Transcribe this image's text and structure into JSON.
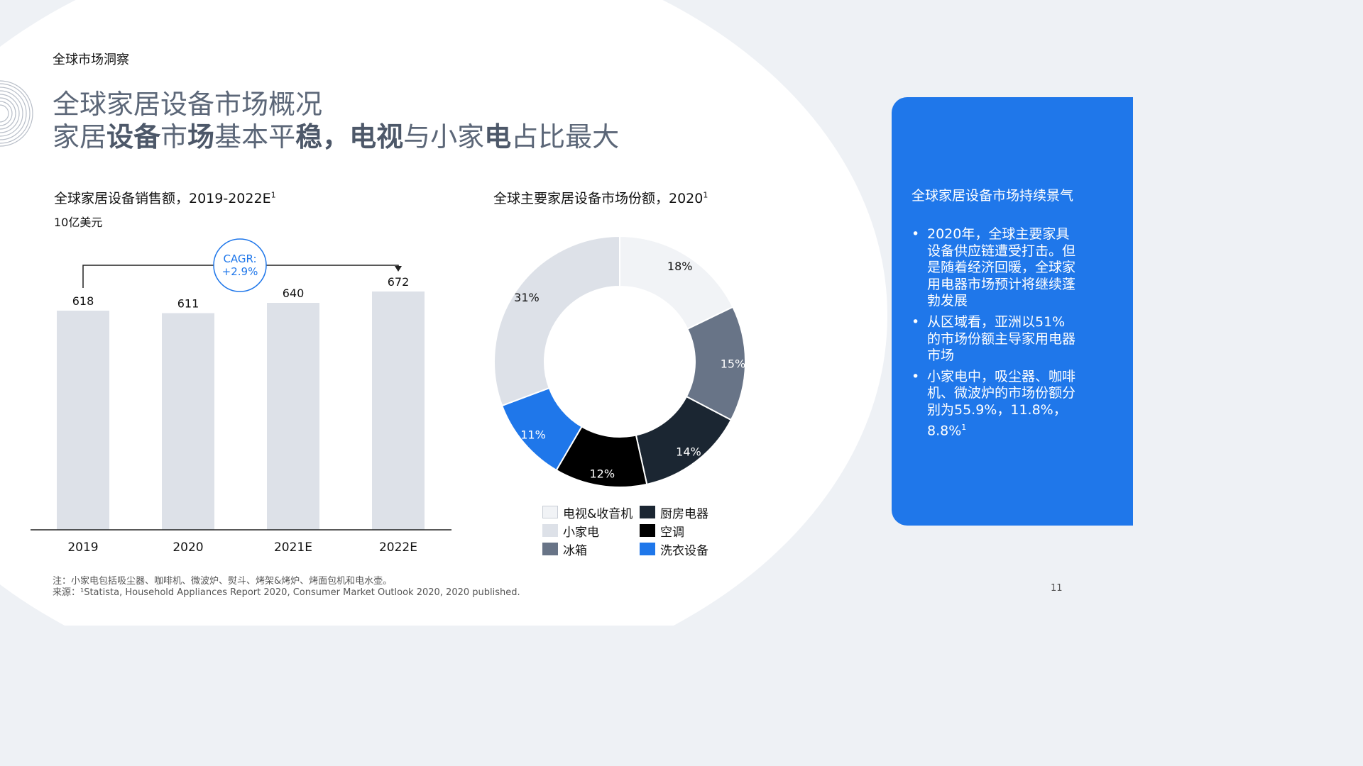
{
  "section_label": "全球市场洞察",
  "title_line1": "全球家居设备市场概况",
  "title_line2": [
    {
      "t": "家居",
      "b": false
    },
    {
      "t": "设备",
      "b": true
    },
    {
      "t": "市",
      "b": false
    },
    {
      "t": "场",
      "b": true
    },
    {
      "t": "基本平",
      "b": false
    },
    {
      "t": "稳，",
      "b": true
    },
    {
      "t": "电视",
      "b": true
    },
    {
      "t": "与小家",
      "b": false
    },
    {
      "t": "电",
      "b": true
    },
    {
      "t": "占比最大",
      "b": false
    }
  ],
  "colors": {
    "bar": "#dde1e8",
    "accent": "#1f77ea",
    "text": "#111111",
    "tv": "#f1f3f6",
    "small": "#dde1e8",
    "fridge": "#687487",
    "kitchen": "#1b2632",
    "ac": "#000000",
    "laundry": "#1f77ea"
  },
  "chart_data": [
    {
      "type": "bar",
      "title": "全球家居设备销售额，2019-2022E",
      "title_sup": "1",
      "unit": "10亿美元",
      "categories": [
        "2019",
        "2020",
        "2021E",
        "2022E"
      ],
      "values": [
        618,
        611,
        640,
        672
      ],
      "ylim": [
        0,
        700
      ],
      "grid": false,
      "annotation": {
        "label_line1": "CAGR:",
        "label_line2": "+2.9%"
      }
    },
    {
      "type": "pie",
      "title": "全球主要家居设备市场份额，2020",
      "title_sup": "1",
      "donut": true,
      "slices": [
        {
          "label": "电视&收音机",
          "value": 18,
          "color_key": "tv",
          "text_color": "#111111"
        },
        {
          "label": "冰箱",
          "value": 15,
          "color_key": "fridge",
          "text_color": "#ffffff"
        },
        {
          "label": "厨房电器",
          "value": 14,
          "color_key": "kitchen",
          "text_color": "#ffffff"
        },
        {
          "label": "空调",
          "value": 12,
          "color_key": "ac",
          "text_color": "#ffffff"
        },
        {
          "label": "洗衣设备",
          "value": 11,
          "color_key": "laundry",
          "text_color": "#ffffff"
        },
        {
          "label": "小家电",
          "value": 31,
          "color_key": "small",
          "text_color": "#111111"
        }
      ],
      "legend": [
        {
          "label": "电视&收音机",
          "color_key": "tv"
        },
        {
          "label": "厨房电器",
          "color_key": "kitchen"
        },
        {
          "label": "小家电",
          "color_key": "small"
        },
        {
          "label": "空调",
          "color_key": "ac"
        },
        {
          "label": "冰箱",
          "color_key": "fridge"
        },
        {
          "label": "洗衣设备",
          "color_key": "laundry"
        }
      ]
    }
  ],
  "panel": {
    "title": "全球家居设备市场持续景气",
    "bullets": [
      "2020年，全球主要家具设备供应链遭受打击。但是随着经济回暖，全球家用电器市场预计将继续蓬勃发展",
      "从区域看，亚洲以51%的市场份额主导家用电器市场",
      "小家电中，吸尘器、咖啡机、微波炉的市场份额分别为55.9%，11.8%，8.8%"
    ],
    "last_sup": "1"
  },
  "footnote1": "注：小家电包括吸尘器、咖啡机、微波炉、熨斗、烤架&烤炉、烤面包机和电水壶。",
  "footnote2": "来源：¹Statista, Household Appliances Report 2020, Consumer Market Outlook 2020, 2020 published.",
  "page_number": "11"
}
